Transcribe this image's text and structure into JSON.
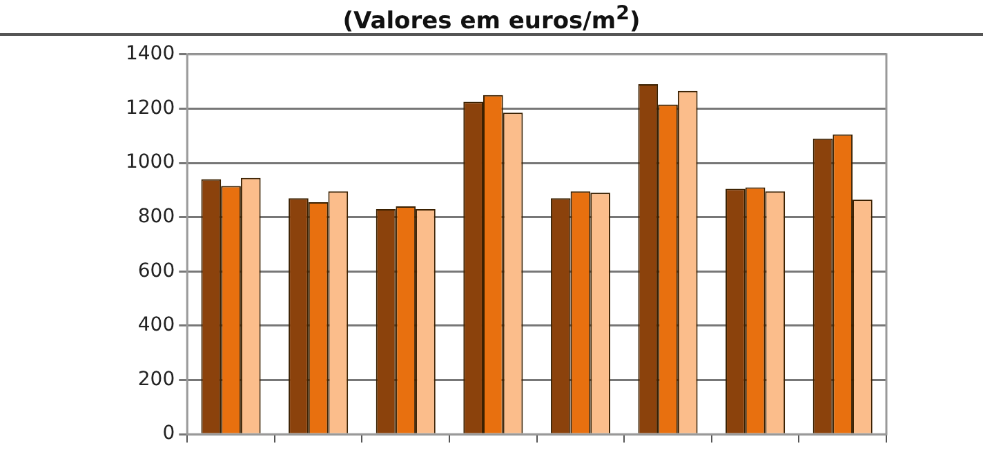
{
  "chart_data": {
    "type": "bar",
    "title": "(Valores em euros/m$^{2}$)",
    "categories": [
      null,
      null,
      null,
      null,
      null,
      null,
      null,
      null
    ],
    "series": [
      {
        "color": "#8b420c",
        "values": [
          940,
          870,
          830,
          1225,
          870,
          1290,
          905,
          1090
        ]
      },
      {
        "color": "#e8700f",
        "values": [
          915,
          855,
          840,
          1250,
          895,
          1215,
          910,
          1105
        ]
      },
      {
        "color": "#fbbd8b",
        "values": [
          945,
          895,
          830,
          1185,
          890,
          1265,
          895,
          865
        ]
      }
    ],
    "ylim": [
      0,
      1400
    ],
    "yticks": [
      0,
      200,
      400,
      600,
      800,
      1000,
      1200,
      1400
    ],
    "grid": "y",
    "legend": false
  }
}
